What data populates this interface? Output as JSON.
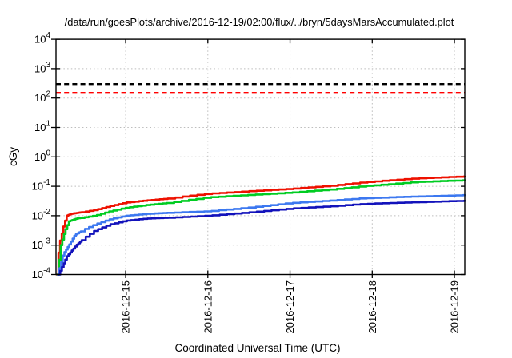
{
  "page": {
    "background": "#ffffff"
  },
  "chart_data": {
    "type": "line",
    "title": "/data/run/goesPlots/archive/2016-12-19/02:00/flux/../bryn/5daysMarsAccumulated.plot",
    "xlabel": "Coordinated Universal Time (UTC)",
    "ylabel": "cGy",
    "y_scale": "log",
    "ylim_exponents": [
      -4,
      4
    ],
    "y_tick_exponents": [
      4,
      3,
      2,
      1,
      0,
      -1,
      -2,
      -3,
      -4
    ],
    "x_tick_labels": [
      "2016-12-15",
      "2016-12-16",
      "2016-12-17",
      "2016-12-18",
      "2016-12-19"
    ],
    "x_tick_days": [
      1,
      2,
      3,
      4,
      5
    ],
    "x_range_days": [
      0.153,
      5.126
    ],
    "x_unit": "days since 2016-12-14 00:00",
    "grid": true,
    "legend": false,
    "colors": {
      "grid": "#bdbdbd",
      "axis": "#000000",
      "threshold_black": "#000000",
      "threshold_red": "#ff0000"
    },
    "thresholds": [
      {
        "value_cgy": 300,
        "color": "#000000",
        "style": "dashed"
      },
      {
        "value_cgy": 150,
        "color": "#ff0000",
        "style": "dashed"
      }
    ],
    "series": [
      {
        "name": "red",
        "color": "#ee1100",
        "points": [
          [
            0.163,
            0.0001
          ],
          [
            0.19,
            0.001
          ],
          [
            0.24,
            0.004
          ],
          [
            0.28,
            0.01
          ],
          [
            0.33,
            0.0115
          ],
          [
            0.45,
            0.013
          ],
          [
            0.62,
            0.0155
          ],
          [
            0.8,
            0.021
          ],
          [
            1.0,
            0.028
          ],
          [
            1.25,
            0.033
          ],
          [
            1.5,
            0.038
          ],
          [
            1.75,
            0.047
          ],
          [
            2.0,
            0.056
          ],
          [
            2.5,
            0.068
          ],
          [
            3.0,
            0.082
          ],
          [
            3.5,
            0.105
          ],
          [
            3.87,
            0.135
          ],
          [
            4.2,
            0.16
          ],
          [
            4.53,
            0.185
          ],
          [
            4.9,
            0.205
          ],
          [
            5.126,
            0.215
          ]
        ]
      },
      {
        "name": "green",
        "color": "#00cc22",
        "points": [
          [
            0.17,
            0.0001
          ],
          [
            0.21,
            0.001
          ],
          [
            0.26,
            0.003
          ],
          [
            0.31,
            0.0065
          ],
          [
            0.4,
            0.008
          ],
          [
            0.62,
            0.01
          ],
          [
            0.8,
            0.014
          ],
          [
            1.0,
            0.0186
          ],
          [
            1.25,
            0.023
          ],
          [
            1.5,
            0.027
          ],
          [
            1.75,
            0.034
          ],
          [
            2.0,
            0.042
          ],
          [
            2.5,
            0.051
          ],
          [
            3.0,
            0.061
          ],
          [
            3.5,
            0.078
          ],
          [
            3.87,
            0.1
          ],
          [
            4.2,
            0.118
          ],
          [
            4.53,
            0.14
          ],
          [
            4.9,
            0.153
          ],
          [
            5.126,
            0.16
          ]
        ]
      },
      {
        "name": "light-blue",
        "color": "#3c78f0",
        "points": [
          [
            0.175,
            0.0001
          ],
          [
            0.24,
            0.0005
          ],
          [
            0.31,
            0.001
          ],
          [
            0.38,
            0.0022
          ],
          [
            0.5,
            0.0035
          ],
          [
            0.62,
            0.005
          ],
          [
            0.8,
            0.0075
          ],
          [
            1.0,
            0.01
          ],
          [
            1.25,
            0.0115
          ],
          [
            1.5,
            0.0125
          ],
          [
            1.75,
            0.0133
          ],
          [
            2.0,
            0.0142
          ],
          [
            2.5,
            0.019
          ],
          [
            3.0,
            0.027
          ],
          [
            3.5,
            0.033
          ],
          [
            3.87,
            0.039
          ],
          [
            4.2,
            0.042
          ],
          [
            4.53,
            0.045
          ],
          [
            4.9,
            0.048
          ],
          [
            5.126,
            0.05
          ]
        ]
      },
      {
        "name": "dark-blue",
        "color": "#1212bb",
        "points": [
          [
            0.185,
            0.0001
          ],
          [
            0.28,
            0.0004
          ],
          [
            0.4,
            0.001
          ],
          [
            0.5,
            0.0018
          ],
          [
            0.62,
            0.0031
          ],
          [
            0.8,
            0.005
          ],
          [
            1.0,
            0.0068
          ],
          [
            1.25,
            0.008
          ],
          [
            1.5,
            0.0085
          ],
          [
            1.75,
            0.0092
          ],
          [
            2.0,
            0.01
          ],
          [
            2.5,
            0.013
          ],
          [
            3.0,
            0.0175
          ],
          [
            3.5,
            0.021
          ],
          [
            3.87,
            0.025
          ],
          [
            4.2,
            0.027
          ],
          [
            4.53,
            0.0288
          ],
          [
            4.9,
            0.031
          ],
          [
            5.126,
            0.032
          ]
        ]
      }
    ]
  }
}
